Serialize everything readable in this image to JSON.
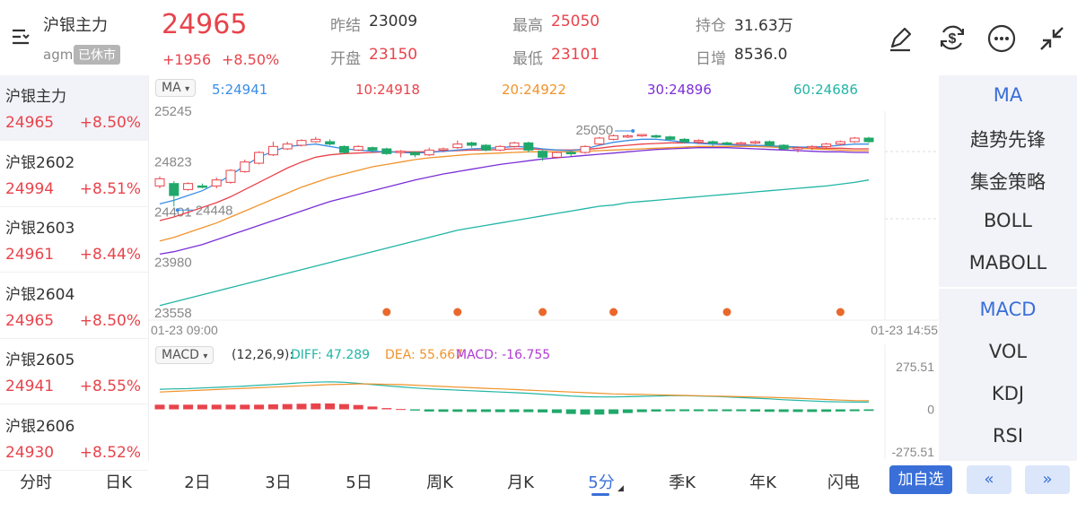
{
  "header": {
    "title": "沪银主力",
    "code": "agm",
    "status": "已休市",
    "price": "24965",
    "change": "+1956",
    "change_pct": "+8.50%",
    "prev_settle_label": "昨结",
    "prev_settle": "23009",
    "open_label": "开盘",
    "open": "23150",
    "high_label": "最高",
    "high": "25050",
    "low_label": "最低",
    "low": "23101",
    "oi_label": "持仓",
    "oi": "31.63万",
    "oi_chg_label": "日增",
    "oi_chg": "8536.0"
  },
  "list": [
    {
      "name": "沪银主力",
      "price": "24965",
      "chg": "+8.50%"
    },
    {
      "name": "沪银2602",
      "price": "24994",
      "chg": "+8.51%"
    },
    {
      "name": "沪银2603",
      "price": "24961",
      "chg": "+8.44%"
    },
    {
      "name": "沪银2604",
      "price": "24965",
      "chg": "+8.50%"
    },
    {
      "name": "沪银2605",
      "price": "24941",
      "chg": "+8.55%"
    },
    {
      "name": "沪银2606",
      "price": "24930",
      "chg": "+8.52%"
    }
  ],
  "ma_bar": {
    "selector": "MA",
    "ma5": "5:24941",
    "ma10": "10:24918",
    "ma20": "20:24922",
    "ma30": "30:24896",
    "ma60": "60:24686"
  },
  "colors": {
    "ma5": "#3a8ee6",
    "ma10": "#e8434b",
    "ma20": "#f0932b",
    "ma30": "#7b2fd6",
    "ma60": "#21b5a5",
    "up": "#e8434b",
    "down": "#20a86a",
    "accent": "#3a6fd8"
  },
  "price_axis": [
    "25245",
    "24823",
    "24401",
    "23980",
    "23558"
  ],
  "time_axis": {
    "start": "01-23 09:00",
    "end": "01-23 14:55"
  },
  "annotations": {
    "high_label": "25050",
    "low_label": "24448"
  },
  "macd_bar": {
    "selector": "MACD",
    "params": "(12,26,9):",
    "diff": "DIFF: 47.289",
    "dea": "DEA: 55.667",
    "macd": "MACD: -16.755"
  },
  "macd_axis": [
    "275.51",
    "0",
    "-275.51"
  ],
  "right_panel": {
    "main": [
      "MA",
      "趋势先锋",
      "集金策略",
      "BOLL",
      "MABOLL"
    ],
    "sub": [
      "MACD",
      "VOL",
      "KDJ",
      "RSI"
    ]
  },
  "tabs": [
    "分时",
    "日K",
    "2日",
    "3日",
    "5日",
    "周K",
    "月K",
    "5分",
    "季K",
    "年K",
    "闪电"
  ],
  "add_watch": "加自选",
  "chart_data": {
    "type": "candlestick",
    "ylim": [
      23558,
      25245
    ],
    "candles": [
      {
        "o": 24620,
        "c": 24680,
        "h": 24700,
        "l": 24600
      },
      {
        "o": 24640,
        "c": 24540,
        "h": 24660,
        "l": 24448
      },
      {
        "o": 24590,
        "c": 24640,
        "h": 24650,
        "l": 24580
      },
      {
        "o": 24620,
        "c": 24610,
        "h": 24640,
        "l": 24600
      },
      {
        "o": 24620,
        "c": 24670,
        "h": 24690,
        "l": 24600
      },
      {
        "o": 24650,
        "c": 24750,
        "h": 24760,
        "l": 24640
      },
      {
        "o": 24740,
        "c": 24820,
        "h": 24840,
        "l": 24730
      },
      {
        "o": 24810,
        "c": 24900,
        "h": 24910,
        "l": 24800
      },
      {
        "o": 24880,
        "c": 24950,
        "h": 24990,
        "l": 24870
      },
      {
        "o": 24930,
        "c": 24970,
        "h": 24990,
        "l": 24920
      },
      {
        "o": 24960,
        "c": 25000,
        "h": 25010,
        "l": 24950
      },
      {
        "o": 24990,
        "c": 25010,
        "h": 25030,
        "l": 24980
      },
      {
        "o": 24990,
        "c": 24970,
        "h": 25010,
        "l": 24960
      },
      {
        "o": 24950,
        "c": 24900,
        "h": 24960,
        "l": 24890
      },
      {
        "o": 24920,
        "c": 24950,
        "h": 24960,
        "l": 24910
      },
      {
        "o": 24940,
        "c": 24920,
        "h": 24950,
        "l": 24900
      },
      {
        "o": 24930,
        "c": 24890,
        "h": 24940,
        "l": 24880
      },
      {
        "o": 24900,
        "c": 24910,
        "h": 24920,
        "l": 24860
      },
      {
        "o": 24900,
        "c": 24880,
        "h": 24910,
        "l": 24860
      },
      {
        "o": 24880,
        "c": 24920,
        "h": 24940,
        "l": 24870
      },
      {
        "o": 24920,
        "c": 24930,
        "h": 24940,
        "l": 24900
      },
      {
        "o": 24940,
        "c": 24970,
        "h": 25000,
        "l": 24930
      },
      {
        "o": 24980,
        "c": 24960,
        "h": 24990,
        "l": 24940
      },
      {
        "o": 24960,
        "c": 24920,
        "h": 24970,
        "l": 24910
      },
      {
        "o": 24920,
        "c": 24950,
        "h": 24960,
        "l": 24910
      },
      {
        "o": 24950,
        "c": 24980,
        "h": 24990,
        "l": 24940
      },
      {
        "o": 24980,
        "c": 24920,
        "h": 24990,
        "l": 24900
      },
      {
        "o": 24910,
        "c": 24860,
        "h": 24920,
        "l": 24830
      },
      {
        "o": 24860,
        "c": 24900,
        "h": 24910,
        "l": 24850
      },
      {
        "o": 24900,
        "c": 24890,
        "h": 24910,
        "l": 24870
      },
      {
        "o": 24900,
        "c": 24950,
        "h": 24960,
        "l": 24890
      },
      {
        "o": 24970,
        "c": 25020,
        "h": 25030,
        "l": 24960
      },
      {
        "o": 25010,
        "c": 25040,
        "h": 25050,
        "l": 25000
      },
      {
        "o": 25030,
        "c": 25040,
        "h": 25050,
        "l": 25020
      },
      {
        "o": 25040,
        "c": 25050,
        "h": 25050,
        "l": 25030
      },
      {
        "o": 25040,
        "c": 25030,
        "h": 25050,
        "l": 25020
      },
      {
        "o": 25030,
        "c": 25010,
        "h": 25040,
        "l": 25000
      },
      {
        "o": 25010,
        "c": 24990,
        "h": 25020,
        "l": 24980
      },
      {
        "o": 24990,
        "c": 25000,
        "h": 25010,
        "l": 24970
      },
      {
        "o": 24990,
        "c": 24980,
        "h": 25000,
        "l": 24950
      },
      {
        "o": 24980,
        "c": 24970,
        "h": 24990,
        "l": 24960
      },
      {
        "o": 24970,
        "c": 24980,
        "h": 24990,
        "l": 24960
      },
      {
        "o": 24980,
        "c": 24990,
        "h": 25000,
        "l": 24970
      },
      {
        "o": 24990,
        "c": 24960,
        "h": 25000,
        "l": 24950
      },
      {
        "o": 24960,
        "c": 24930,
        "h": 24970,
        "l": 24920
      },
      {
        "o": 24930,
        "c": 24940,
        "h": 24950,
        "l": 24900
      },
      {
        "o": 24940,
        "c": 24950,
        "h": 24960,
        "l": 24920
      },
      {
        "o": 24950,
        "c": 24970,
        "h": 24980,
        "l": 24940
      },
      {
        "o": 24970,
        "c": 24990,
        "h": 25000,
        "l": 24960
      },
      {
        "o": 24990,
        "c": 25020,
        "h": 25030,
        "l": 24980
      },
      {
        "o": 25020,
        "c": 24990,
        "h": 25030,
        "l": 24980
      }
    ],
    "ma_lines": {
      "ma5": [
        24470,
        24500,
        24540,
        24580,
        24640,
        24710,
        24790,
        24860,
        24910,
        24950,
        24960,
        24970,
        24950,
        24930,
        24920,
        24910,
        24905,
        24900,
        24895,
        24900,
        24910,
        24920,
        24930,
        24935,
        24940,
        24950,
        24945,
        24930,
        24920,
        24915,
        24930,
        24960,
        24985,
        25000,
        25010,
        25010,
        25000,
        24985,
        24975,
        24970,
        24965,
        24960,
        24960,
        24955,
        24950,
        24945,
        24945,
        24950,
        24960,
        24970,
        24970
      ],
      "ma10": [
        24330,
        24360,
        24400,
        24440,
        24480,
        24530,
        24590,
        24650,
        24710,
        24770,
        24820,
        24860,
        24880,
        24890,
        24895,
        24900,
        24905,
        24905,
        24905,
        24905,
        24910,
        24915,
        24920,
        24920,
        24925,
        24930,
        24930,
        24925,
        24920,
        24920,
        24925,
        24935,
        24950,
        24960,
        24970,
        24975,
        24980,
        24980,
        24980,
        24975,
        24970,
        24965,
        24960,
        24955,
        24950,
        24945,
        24940,
        24935,
        24935,
        24930,
        24930
      ],
      "ma20": [
        24160,
        24190,
        24230,
        24270,
        24310,
        24360,
        24410,
        24460,
        24510,
        24560,
        24610,
        24650,
        24690,
        24720,
        24750,
        24780,
        24800,
        24820,
        24840,
        24855,
        24865,
        24875,
        24885,
        24890,
        24895,
        24900,
        24905,
        24905,
        24905,
        24905,
        24910,
        24915,
        24920,
        24925,
        24930,
        24935,
        24940,
        24945,
        24950,
        24950,
        24950,
        24950,
        24950,
        24945,
        24940,
        24935,
        24930,
        24925,
        24920,
        24915,
        24915
      ],
      "ma30": [
        24050,
        24070,
        24100,
        24130,
        24170,
        24210,
        24250,
        24290,
        24330,
        24370,
        24410,
        24450,
        24490,
        24520,
        24550,
        24580,
        24610,
        24640,
        24670,
        24695,
        24720,
        24740,
        24760,
        24780,
        24800,
        24815,
        24830,
        24845,
        24855,
        24865,
        24875,
        24885,
        24895,
        24905,
        24915,
        24925,
        24930,
        24935,
        24940,
        24940,
        24940,
        24935,
        24930,
        24925,
        24920,
        24915,
        24910,
        24905,
        24905,
        24900,
        24900
      ],
      "ma60": [
        23620,
        23650,
        23680,
        23710,
        23740,
        23770,
        23800,
        23830,
        23860,
        23890,
        23920,
        23950,
        23980,
        24010,
        24040,
        24070,
        24100,
        24130,
        24160,
        24190,
        24220,
        24250,
        24270,
        24290,
        24310,
        24330,
        24350,
        24370,
        24390,
        24410,
        24430,
        24450,
        24460,
        24480,
        24490,
        24500,
        24510,
        24520,
        24530,
        24540,
        24550,
        24560,
        24570,
        24580,
        24590,
        24600,
        24610,
        24620,
        24635,
        24650,
        24670
      ]
    },
    "markers_count": 6,
    "macd": {
      "ylim": [
        -275.51,
        275.51
      ],
      "hist": [
        30,
        30,
        30,
        30,
        30,
        30,
        30,
        30,
        32,
        34,
        36,
        38,
        38,
        34,
        28,
        18,
        8,
        2,
        -8,
        -14,
        -16,
        -16,
        -17,
        -17,
        -18,
        -18,
        -18,
        -20,
        -24,
        -30,
        -34,
        -34,
        -30,
        -24,
        -18,
        -14,
        -12,
        -12,
        -12,
        -12,
        -12,
        -12,
        -14,
        -16,
        -17,
        -17,
        -17,
        -16,
        -14,
        -12,
        -10
      ],
      "diff": [
        130,
        132,
        134,
        138,
        142,
        146,
        150,
        156,
        160,
        166,
        172,
        176,
        178,
        175,
        168,
        160,
        152,
        145,
        138,
        132,
        128,
        124,
        120,
        116,
        112,
        108,
        104,
        98,
        92,
        86,
        82,
        80,
        80,
        82,
        84,
        86,
        88,
        88,
        86,
        84,
        80,
        76,
        72,
        68,
        62,
        58,
        54,
        50,
        48,
        47,
        47
      ],
      "dea": [
        112,
        116,
        120,
        124,
        128,
        132,
        136,
        140,
        144,
        148,
        152,
        156,
        160,
        162,
        164,
        164,
        162,
        160,
        156,
        152,
        148,
        144,
        140,
        136,
        132,
        128,
        124,
        120,
        116,
        112,
        108,
        104,
        100,
        98,
        96,
        94,
        92,
        90,
        88,
        86,
        84,
        82,
        80,
        78,
        75,
        72,
        68,
        64,
        60,
        57,
        56
      ]
    }
  }
}
